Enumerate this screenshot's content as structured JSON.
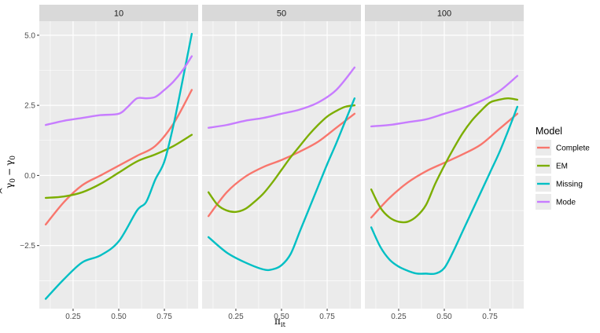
{
  "chart_data": {
    "type": "line",
    "panels": [
      "10",
      "50",
      "100"
    ],
    "xlabel": "π",
    "xlabel_sub": "it",
    "ylabel_main": "γ",
    "ylabel_hat": "^",
    "ylabel_sub": "0",
    "ylabel_minus": "−",
    "ylabel_true_sub": "0",
    "xlim": [
      0.065,
      0.935
    ],
    "ylim": [
      -4.75,
      5.5
    ],
    "x_ticks": [
      0.25,
      0.5,
      0.75
    ],
    "x_tick_labels": [
      "0.25",
      "0.50",
      "0.75"
    ],
    "y_ticks": [
      -2.5,
      0.0,
      2.5,
      5.0
    ],
    "y_tick_labels": [
      "−2.5",
      "0.0",
      "2.5",
      "5.0"
    ],
    "grid": true,
    "legend_title": "Model",
    "legend_position": "right",
    "series_names": [
      "Complete",
      "EM",
      "Missing",
      "Mode"
    ],
    "colors": [
      "#F8766D",
      "#7CAE00",
      "#00BFC4",
      "#C77CFF"
    ],
    "panel_series": [
      [
        {
          "name": "Complete",
          "x": [
            0.1,
            0.2,
            0.3,
            0.4,
            0.5,
            0.6,
            0.7,
            0.8,
            0.9
          ],
          "y": [
            -1.75,
            -0.95,
            -0.35,
            0.0,
            0.35,
            0.7,
            1.05,
            1.85,
            3.05
          ]
        },
        {
          "name": "EM",
          "x": [
            0.1,
            0.2,
            0.3,
            0.4,
            0.5,
            0.6,
            0.7,
            0.8,
            0.9
          ],
          "y": [
            -0.8,
            -0.75,
            -0.6,
            -0.3,
            0.1,
            0.5,
            0.75,
            1.05,
            1.45
          ]
        },
        {
          "name": "Missing",
          "x": [
            0.1,
            0.2,
            0.3,
            0.4,
            0.5,
            0.6,
            0.65,
            0.7,
            0.75,
            0.8,
            0.85,
            0.9
          ],
          "y": [
            -4.4,
            -3.7,
            -3.1,
            -2.85,
            -2.35,
            -1.25,
            -0.95,
            -0.15,
            0.5,
            1.8,
            3.4,
            5.05
          ]
        },
        {
          "name": "Mode",
          "x": [
            0.1,
            0.2,
            0.3,
            0.4,
            0.5,
            0.55,
            0.6,
            0.65,
            0.7,
            0.75,
            0.8,
            0.85,
            0.9
          ],
          "y": [
            1.8,
            1.95,
            2.05,
            2.15,
            2.2,
            2.45,
            2.75,
            2.75,
            2.8,
            3.05,
            3.35,
            3.75,
            4.25
          ]
        }
      ],
      [
        {
          "name": "Complete",
          "x": [
            0.1,
            0.2,
            0.3,
            0.4,
            0.5,
            0.6,
            0.7,
            0.8,
            0.9
          ],
          "y": [
            -1.45,
            -0.6,
            -0.05,
            0.3,
            0.55,
            0.85,
            1.2,
            1.7,
            2.2
          ]
        },
        {
          "name": "EM",
          "x": [
            0.1,
            0.15,
            0.2,
            0.25,
            0.3,
            0.35,
            0.4,
            0.45,
            0.5,
            0.55,
            0.6,
            0.65,
            0.7,
            0.75,
            0.8,
            0.85,
            0.9
          ],
          "y": [
            -0.6,
            -1.05,
            -1.25,
            -1.3,
            -1.2,
            -0.95,
            -0.65,
            -0.25,
            0.2,
            0.65,
            1.05,
            1.45,
            1.8,
            2.1,
            2.3,
            2.45,
            2.5
          ]
        },
        {
          "name": "Missing",
          "x": [
            0.1,
            0.2,
            0.3,
            0.4,
            0.45,
            0.5,
            0.55,
            0.6,
            0.65,
            0.7,
            0.75,
            0.8,
            0.85,
            0.9
          ],
          "y": [
            -2.2,
            -2.75,
            -3.1,
            -3.35,
            -3.35,
            -3.2,
            -2.8,
            -2.0,
            -1.2,
            -0.4,
            0.4,
            1.15,
            1.95,
            2.75
          ]
        },
        {
          "name": "Mode",
          "x": [
            0.1,
            0.2,
            0.3,
            0.4,
            0.5,
            0.6,
            0.7,
            0.8,
            0.9
          ],
          "y": [
            1.7,
            1.8,
            1.95,
            2.05,
            2.2,
            2.35,
            2.6,
            3.05,
            3.85
          ]
        }
      ],
      [
        {
          "name": "Complete",
          "x": [
            0.1,
            0.2,
            0.3,
            0.4,
            0.5,
            0.6,
            0.7,
            0.8,
            0.9
          ],
          "y": [
            -1.5,
            -0.8,
            -0.25,
            0.15,
            0.45,
            0.75,
            1.1,
            1.65,
            2.2
          ]
        },
        {
          "name": "EM",
          "x": [
            0.1,
            0.15,
            0.2,
            0.25,
            0.3,
            0.35,
            0.4,
            0.45,
            0.5,
            0.55,
            0.6,
            0.65,
            0.7,
            0.75,
            0.8,
            0.85,
            0.9
          ],
          "y": [
            -0.5,
            -1.15,
            -1.5,
            -1.65,
            -1.65,
            -1.45,
            -1.05,
            -0.3,
            0.35,
            0.95,
            1.5,
            1.95,
            2.3,
            2.6,
            2.7,
            2.75,
            2.7
          ]
        },
        {
          "name": "Missing",
          "x": [
            0.1,
            0.15,
            0.2,
            0.25,
            0.3,
            0.35,
            0.4,
            0.45,
            0.5,
            0.55,
            0.6,
            0.65,
            0.7,
            0.75,
            0.8,
            0.85,
            0.9
          ],
          "y": [
            -1.85,
            -2.55,
            -3.0,
            -3.25,
            -3.4,
            -3.5,
            -3.5,
            -3.5,
            -3.3,
            -2.7,
            -2.0,
            -1.3,
            -0.6,
            0.1,
            0.8,
            1.6,
            2.45
          ]
        },
        {
          "name": "Mode",
          "x": [
            0.1,
            0.2,
            0.3,
            0.4,
            0.5,
            0.6,
            0.7,
            0.8,
            0.9
          ],
          "y": [
            1.75,
            1.8,
            1.9,
            2.0,
            2.2,
            2.4,
            2.65,
            3.0,
            3.55
          ]
        }
      ]
    ]
  }
}
